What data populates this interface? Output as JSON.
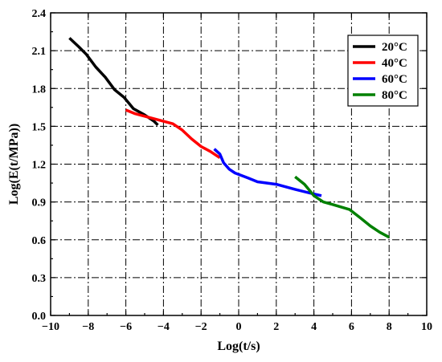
{
  "chart_data": {
    "type": "line",
    "title": "",
    "xlabel": "Log(t/s)",
    "ylabel": "Log(E(t/MPa))",
    "xlim": [
      -10,
      10
    ],
    "ylim": [
      0.0,
      2.4
    ],
    "xticks": [
      -10,
      -8,
      -6,
      -4,
      -2,
      0,
      2,
      4,
      6,
      8,
      10
    ],
    "xtick_labels": [
      "−10",
      "−8",
      "−6",
      "−4",
      "−2",
      "0",
      "2",
      "4",
      "6",
      "8",
      "10"
    ],
    "yticks": [
      0.0,
      0.3,
      0.6,
      0.9,
      1.2,
      1.5,
      1.8,
      2.1,
      2.4
    ],
    "ytick_labels": [
      "0.0",
      "0.3",
      "0.6",
      "0.9",
      "1.2",
      "1.5",
      "1.8",
      "2.1",
      "2.4"
    ],
    "grid": true,
    "legend_position": "top-right",
    "series": [
      {
        "name": "20°C",
        "color": "#000000",
        "x": [
          -9.0,
          -8.5,
          -8.1,
          -7.6,
          -7.1,
          -6.6,
          -6.1,
          -5.6,
          -5.0,
          -4.5,
          -4.3
        ],
        "y": [
          2.2,
          2.13,
          2.07,
          1.97,
          1.89,
          1.79,
          1.73,
          1.64,
          1.59,
          1.54,
          1.51
        ]
      },
      {
        "name": "40°C",
        "color": "#ff0000",
        "x": [
          -6.0,
          -5.5,
          -5.0,
          -4.5,
          -4.0,
          -3.5,
          -3.0,
          -2.5,
          -2.0,
          -1.5,
          -1.0
        ],
        "y": [
          1.63,
          1.6,
          1.58,
          1.56,
          1.54,
          1.52,
          1.47,
          1.4,
          1.34,
          1.3,
          1.25
        ]
      },
      {
        "name": "60°C",
        "color": "#0000ff",
        "x": [
          -1.3,
          -1.0,
          -0.8,
          -0.5,
          -0.2,
          0.5,
          1.0,
          2.0,
          3.0,
          3.8,
          4.4
        ],
        "y": [
          1.32,
          1.28,
          1.21,
          1.16,
          1.13,
          1.09,
          1.06,
          1.04,
          1.0,
          0.97,
          0.95
        ]
      },
      {
        "name": "80°C",
        "color": "#008000",
        "x": [
          3.0,
          3.5,
          4.0,
          4.5,
          5.0,
          5.9,
          6.5,
          7.0,
          7.5,
          8.0
        ],
        "y": [
          1.1,
          1.04,
          0.95,
          0.9,
          0.88,
          0.84,
          0.77,
          0.71,
          0.66,
          0.62
        ]
      }
    ]
  }
}
